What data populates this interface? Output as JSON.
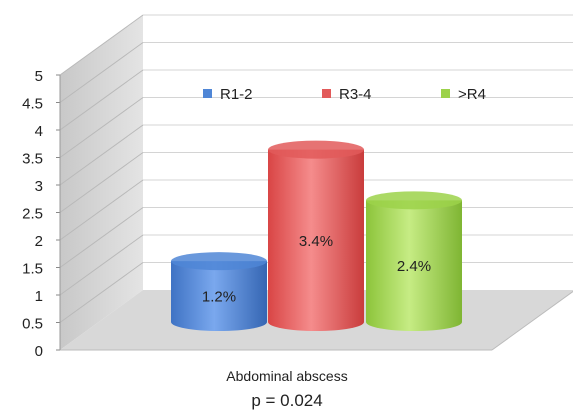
{
  "chart_data": {
    "type": "bar",
    "categories": [
      "Abdominal abscess"
    ],
    "series": [
      {
        "name": "R1-2",
        "values": [
          1.2
        ],
        "label": "1.2%",
        "color": "#4f86d6"
      },
      {
        "name": "R3-4",
        "values": [
          3.4
        ],
        "label": "3.4%",
        "color": "#e25a5a"
      },
      {
        "name": ">R4",
        "values": [
          2.4
        ],
        "label": "2.4%",
        "color": "#9cd24a"
      }
    ],
    "yticks": [
      "0",
      "0.5",
      "1",
      "1.5",
      "2",
      "2.5",
      "3",
      "3.5",
      "4",
      "4.5",
      "5"
    ],
    "ylim": [
      0,
      5
    ],
    "grid": true,
    "legend_position": "top",
    "xlabel": "Abdominal abscess",
    "subtitle": "p = 0.024",
    "style": "3d-cylinder"
  }
}
